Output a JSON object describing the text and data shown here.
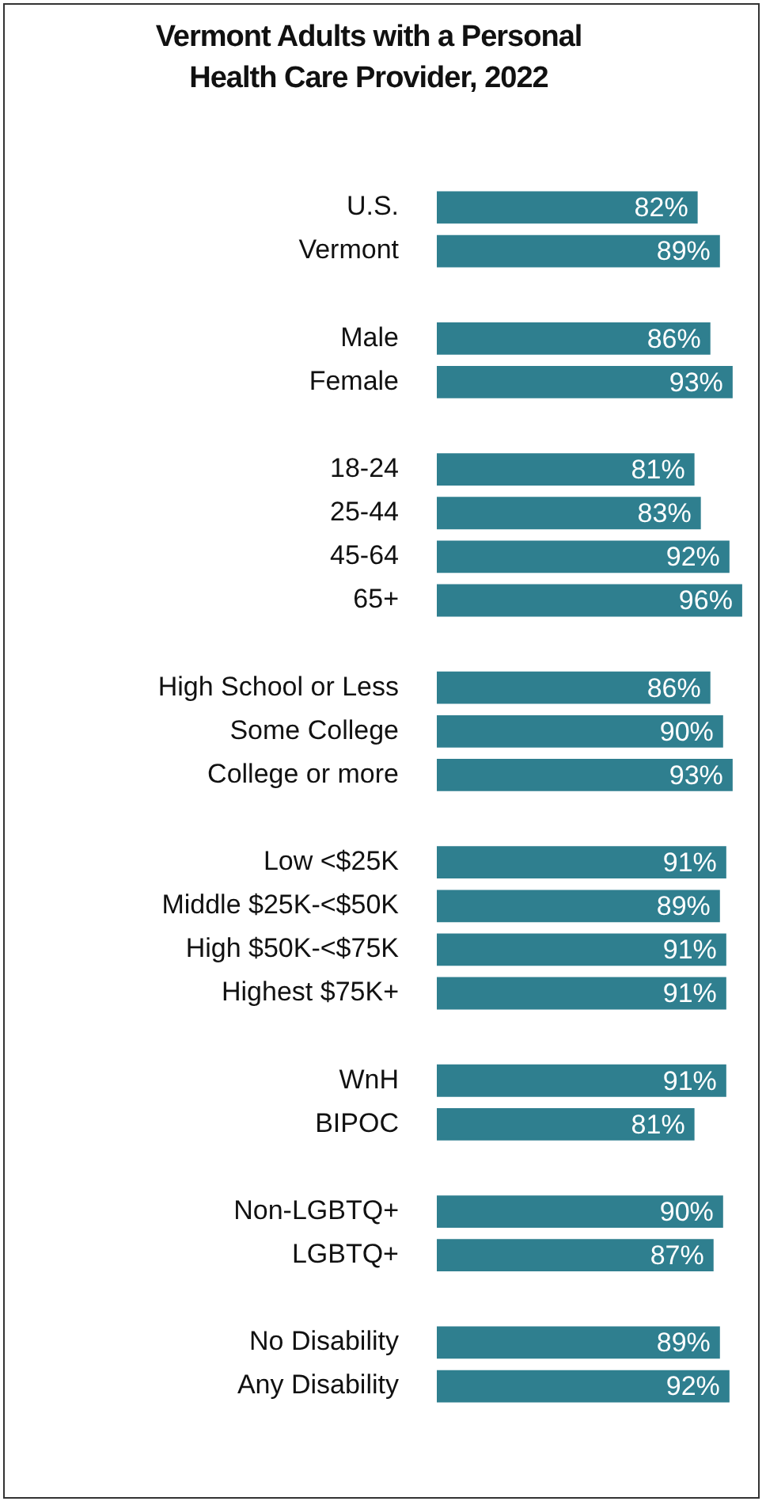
{
  "chart_data": {
    "type": "bar",
    "orientation": "horizontal",
    "title": "Vermont Adults with a Personal Health Care Provider, 2022",
    "categories": [
      "U.S.",
      "Vermont",
      null,
      "Male",
      "Female",
      null,
      "18-24",
      "25-44",
      "45-64",
      "65+",
      null,
      "High School or Less",
      "Some College",
      "College or more",
      null,
      "Low <$25K",
      "Middle $25K-<$50K",
      "High $50K-<$75K",
      "Highest $75K+",
      null,
      "WnH",
      "BIPOC",
      null,
      "Non-LGBTQ+",
      "LGBTQ+",
      null,
      "No Disability",
      "Any Disability"
    ],
    "values": [
      82,
      89,
      null,
      86,
      93,
      null,
      81,
      83,
      92,
      96,
      null,
      86,
      90,
      93,
      null,
      91,
      89,
      91,
      91,
      null,
      91,
      81,
      null,
      90,
      87,
      null,
      89,
      92
    ],
    "value_labels": [
      "82%",
      "89%",
      null,
      "86%",
      "93%",
      null,
      "81%",
      "83%",
      "92%",
      "96%",
      null,
      "86%",
      "90%",
      "93%",
      null,
      "91%",
      "89%",
      "91%",
      "91%",
      null,
      "91%",
      "81%",
      null,
      "90%",
      "87%",
      null,
      "89%",
      "92%"
    ],
    "color": "#2f7f8f",
    "tick_labels": "y",
    "grid": false,
    "legend": false
  }
}
